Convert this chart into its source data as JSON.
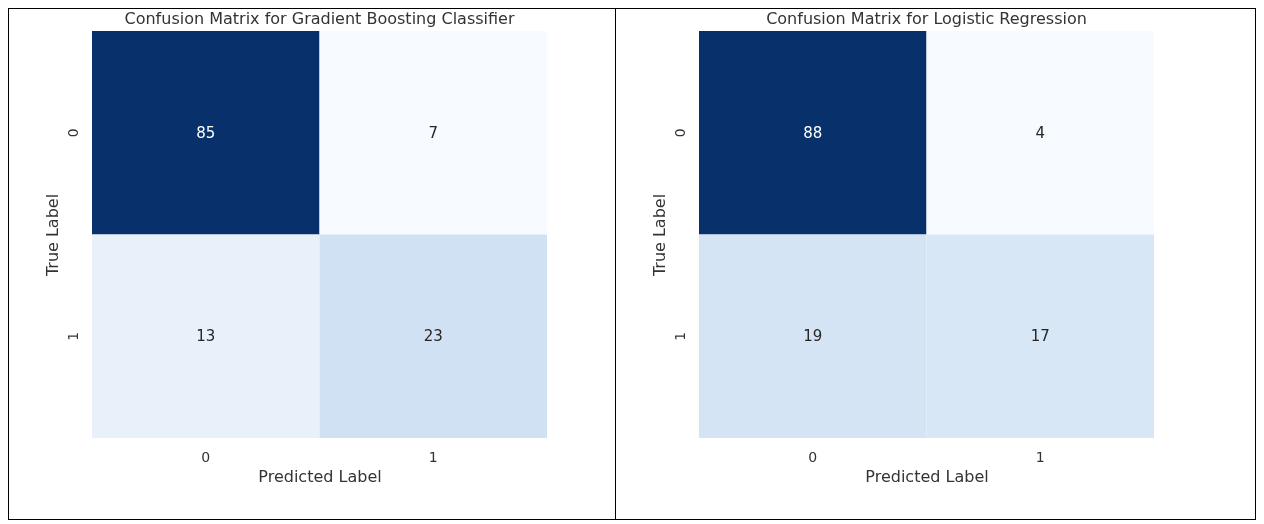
{
  "chart_data": [
    {
      "type": "heatmap",
      "title": "Confusion Matrix for Gradient Boosting Classifier",
      "xlabel": "Predicted Label",
      "ylabel": "True Label",
      "categories": [
        "0",
        "1"
      ],
      "y_categories": [
        "0",
        "1"
      ],
      "cells": [
        [
          85,
          7
        ],
        [
          13,
          23
        ]
      ],
      "data_labels": true
    },
    {
      "type": "heatmap",
      "title": "Confusion Matrix for Logistic Regression",
      "xlabel": "Predicted Label",
      "ylabel": "True Label",
      "categories": [
        "0",
        "1"
      ],
      "y_categories": [
        "0",
        "1"
      ],
      "cells": [
        [
          88,
          4
        ],
        [
          19,
          17
        ]
      ],
      "data_labels": true
    }
  ]
}
